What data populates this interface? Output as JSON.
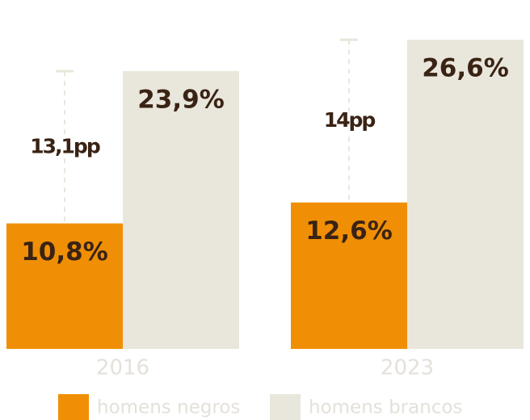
{
  "chart_data": {
    "type": "bar",
    "categories": [
      "2016",
      "2023"
    ],
    "series": [
      {
        "name": "homens negros",
        "color": "#f08f05",
        "values": [
          10.8,
          12.6
        ],
        "value_labels": [
          "10,8%",
          "12,6%"
        ]
      },
      {
        "name": "homens brancos",
        "color": "#e9e6dc",
        "values": [
          23.9,
          26.6
        ],
        "value_labels": [
          "23,9%",
          "26,6%"
        ]
      }
    ],
    "gaps": {
      "values": [
        13.1,
        14
      ],
      "value_labels": [
        "13,1pp",
        "14pp"
      ]
    }
  }
}
